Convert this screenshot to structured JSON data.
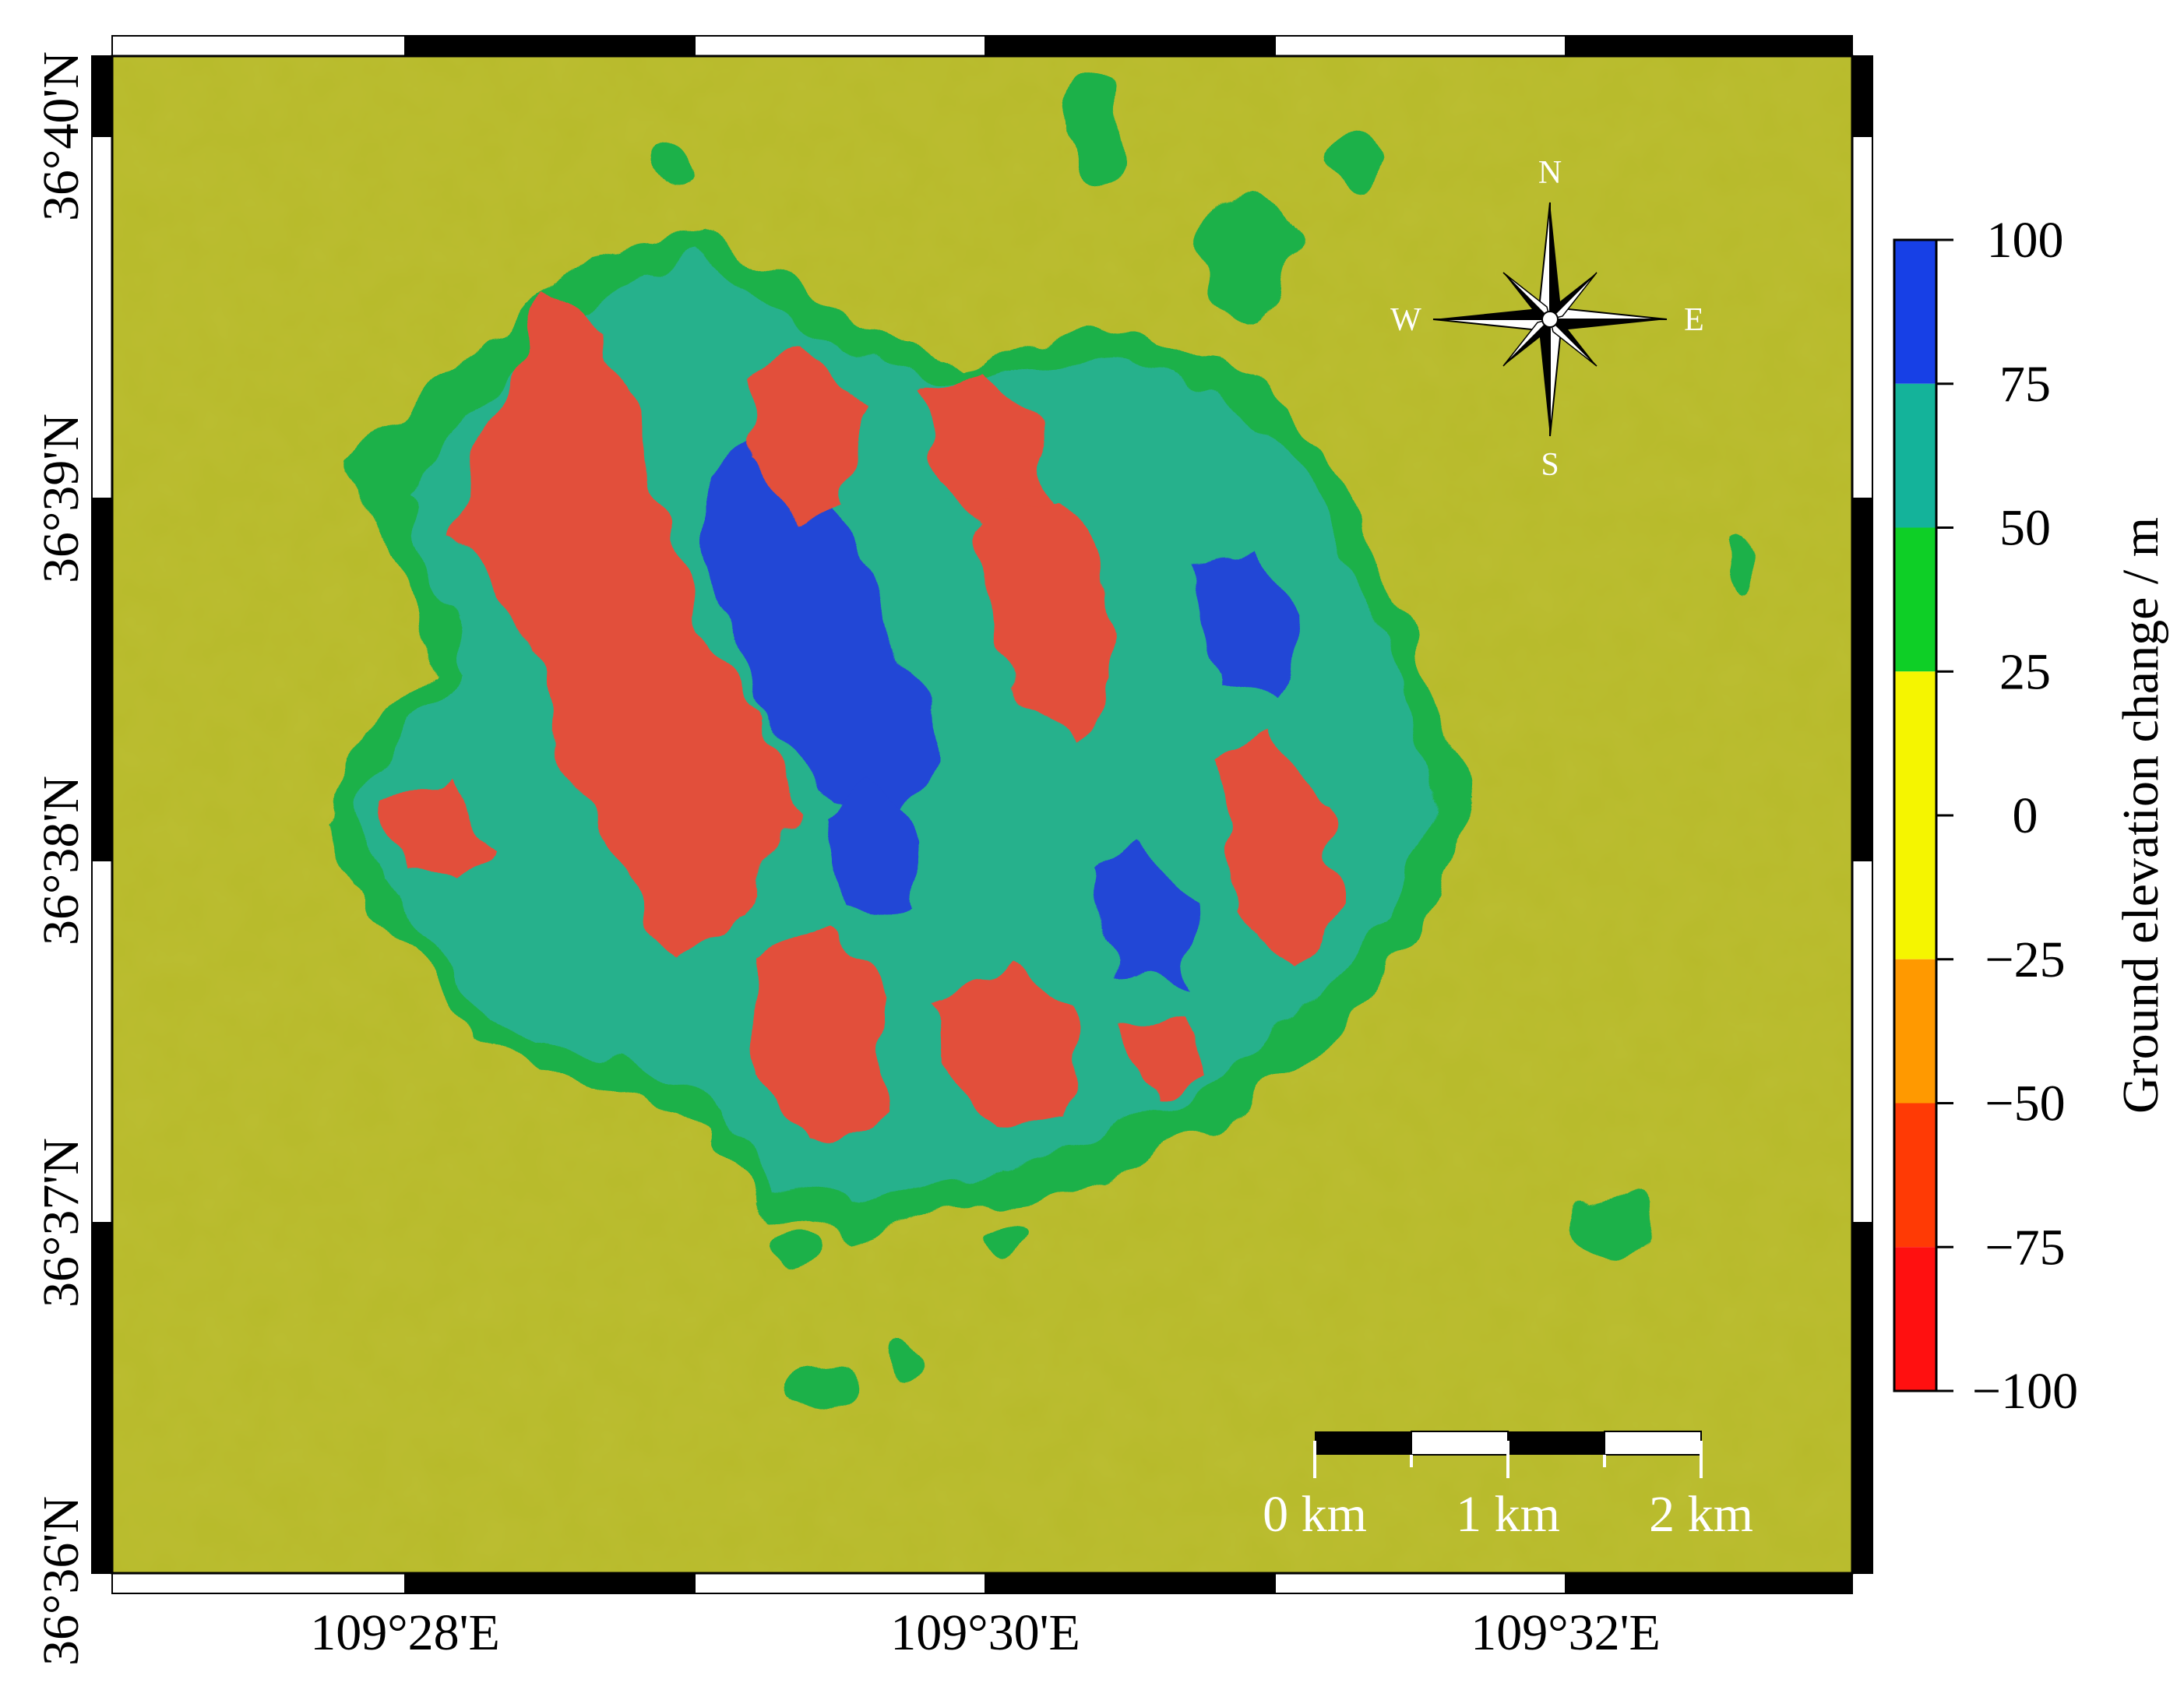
{
  "map": {
    "lon_labels": [
      "109°28'E",
      "109°30'E",
      "109°32'E"
    ],
    "lat_labels": [
      "36°40'N",
      "36°39'N",
      "36°38'N",
      "36°37'N",
      "36°36'N"
    ],
    "colorbar": {
      "title": "Ground elevation change / m",
      "ticks": [
        "100",
        "75",
        "50",
        "25",
        "0",
        "−25",
        "−50",
        "−75",
        "−100"
      ],
      "bins": [
        {
          "from": 75,
          "to": 100,
          "color": "#1740e6"
        },
        {
          "from": 50,
          "to": 75,
          "color": "#14b39a"
        },
        {
          "from": 25,
          "to": 50,
          "color": "#0ecf26"
        },
        {
          "from": 0,
          "to": 25,
          "color": "#f5f500"
        },
        {
          "from": -25,
          "to": 0,
          "color": "#f5f500"
        },
        {
          "from": -50,
          "to": -25,
          "color": "#ff9900"
        },
        {
          "from": -75,
          "to": -50,
          "color": "#ff3a05"
        },
        {
          "from": -100,
          "to": -75,
          "color": "#ff1010"
        }
      ]
    },
    "compass": {
      "n": "N",
      "s": "S",
      "e": "E",
      "w": "W"
    },
    "scalebar": {
      "labels": [
        "0 km",
        "1 km",
        "2 km"
      ]
    },
    "colors": {
      "background": "#b7ba2a",
      "green": "#1fb14a",
      "teal": "#27b18c",
      "blue": "#2446d6",
      "red": "#e2503a"
    }
  }
}
